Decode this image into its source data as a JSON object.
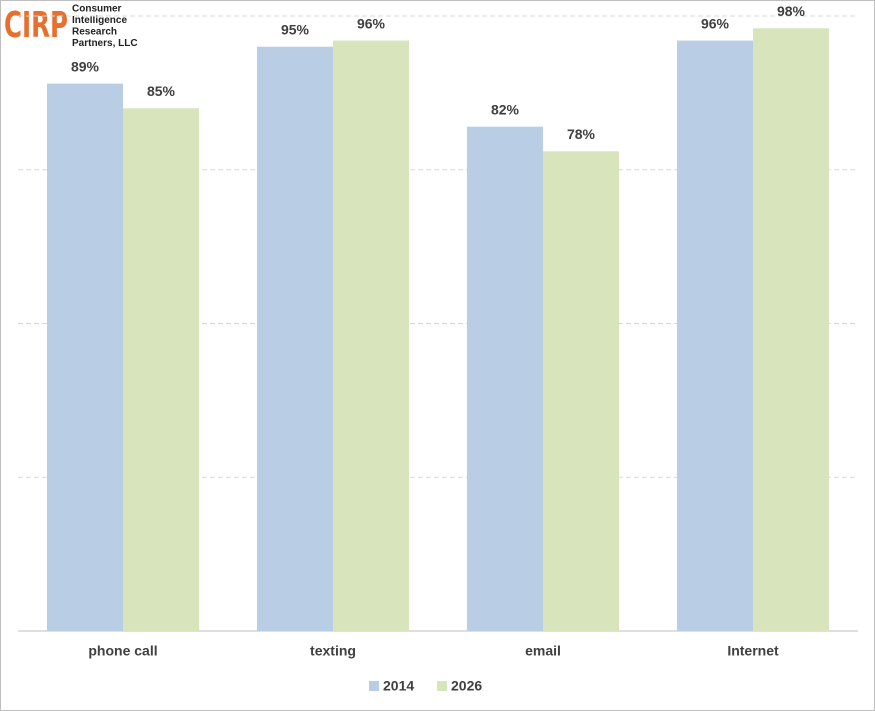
{
  "chart_data": {
    "type": "bar",
    "categories": [
      "phone call",
      "texting",
      "email",
      "Internet"
    ],
    "series": [
      {
        "name": "2014",
        "color": "#b9cde5",
        "values": [
          89,
          95,
          82,
          96
        ],
        "value_labels": [
          "89%",
          "95%",
          "82%",
          "96%"
        ]
      },
      {
        "name": "2026",
        "color": "#d7e4bc",
        "values": [
          85,
          96,
          78,
          98
        ],
        "value_labels": [
          "85%",
          "96%",
          "78%",
          "98%"
        ]
      }
    ],
    "ylim": [
      0,
      100
    ],
    "yticks": [
      0,
      25,
      50,
      75,
      100
    ],
    "ytick_labels": false,
    "grid": true,
    "legend": "bottom"
  },
  "logo": {
    "mark": "CIRP",
    "lines": [
      "Consumer",
      "Intelligence",
      "Research",
      "Partners, LLC"
    ]
  }
}
